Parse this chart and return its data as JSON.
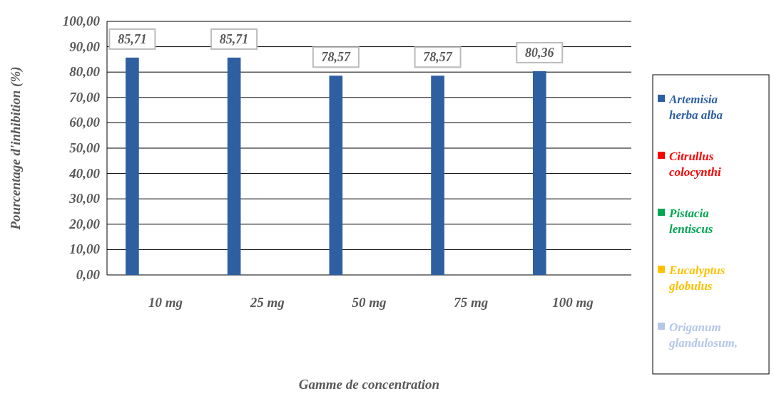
{
  "chart_data": {
    "type": "bar",
    "xlabel": "Gamme de concentration",
    "ylabel": "Pourcentage d'inhibition (%)",
    "categories": [
      "10 mg",
      "25 mg",
      "50 mg",
      "75 mg",
      "100 mg"
    ],
    "series": [
      {
        "name": "Artemisia herba alba",
        "color": "#2e5fa1",
        "values": [
          85.71,
          85.71,
          78.57,
          78.57,
          80.36
        ],
        "value_labels": [
          "85,71",
          "85,71",
          "78,57",
          "78,57",
          "80,36"
        ]
      },
      {
        "name": "Citrullus colocynthi",
        "color": "#ff0000",
        "values": [
          0,
          0,
          0,
          0,
          0
        ]
      },
      {
        "name": "Pistacia lentiscus",
        "color": "#00a651",
        "values": [
          0,
          0,
          0,
          0,
          0
        ]
      },
      {
        "name": "Eucalyptus globulus",
        "color": "#ffc000",
        "values": [
          0,
          0,
          0,
          0,
          0
        ]
      },
      {
        "name": "Origanum glandulosum,",
        "color": "#b4c7e7",
        "values": [
          0,
          0,
          0,
          0,
          0
        ]
      }
    ],
    "ylim": [
      0,
      100
    ],
    "yticks": [
      {
        "value": 0,
        "label": "0,00"
      },
      {
        "value": 10,
        "label": "10,00"
      },
      {
        "value": 20,
        "label": "20,00"
      },
      {
        "value": 30,
        "label": "30,00"
      },
      {
        "value": 40,
        "label": "40,00"
      },
      {
        "value": 50,
        "label": "50,00"
      },
      {
        "value": 60,
        "label": "60,00"
      },
      {
        "value": 70,
        "label": "70,00"
      },
      {
        "value": 80,
        "label": "80,00"
      },
      {
        "value": 90,
        "label": "90,00"
      },
      {
        "value": 100,
        "label": "100,00"
      }
    ],
    "grid": "y",
    "legend": "right"
  }
}
